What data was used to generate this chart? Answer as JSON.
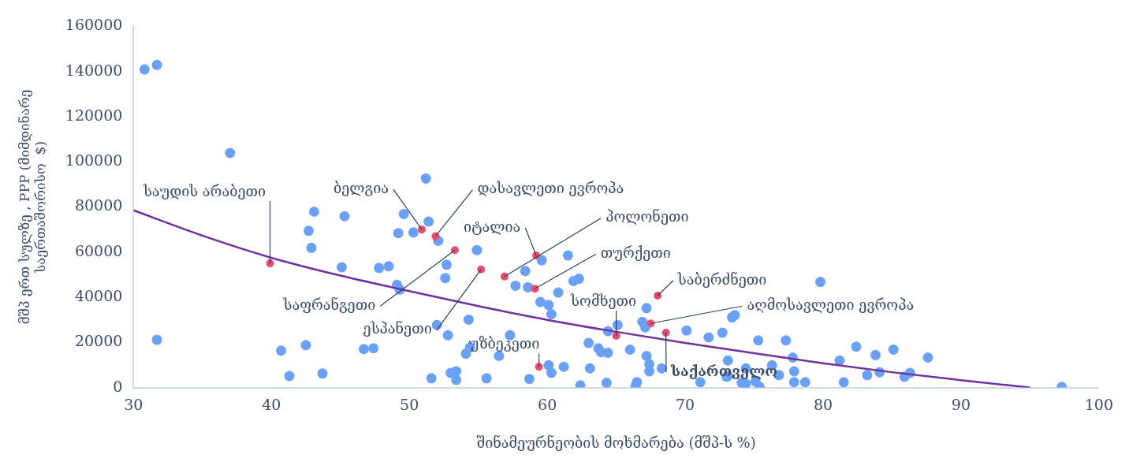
{
  "chart_data": {
    "type": "scatter",
    "xlabel": "შინამეურნეობის მოხმარება (მშპ-ს %)",
    "ylabel": "მშპ ერთ სულზე , PPP (მიმდინარე\nსაერთაშორისო  $)",
    "xlim": [
      30,
      100
    ],
    "xticks": [
      30,
      40,
      50,
      60,
      70,
      80,
      90,
      100
    ],
    "ylim": [
      0,
      160000
    ],
    "yticks": [
      0,
      20000,
      40000,
      60000,
      80000,
      100000,
      120000,
      140000,
      160000
    ],
    "grid": false,
    "legend": false,
    "marker": "circle",
    "series": [
      {
        "color": "#6aa1f6",
        "x": [
          30.8,
          31.7,
          37.0,
          31.7,
          42.7,
          43.1,
          42.9,
          45.3,
          45.1,
          40.7,
          41.3,
          42.5,
          43.7,
          46.7,
          47.4,
          47.8,
          48.5,
          49.1,
          49.3,
          49.2,
          49.6,
          50.3,
          51.2,
          51.4,
          52.1,
          52.7,
          52.6,
          51.6,
          52.0,
          52.8,
          54.3,
          54.9,
          54.1,
          54.4,
          53.0,
          53.4,
          53.4,
          55.6,
          56.5,
          57.3,
          58.4,
          57.7,
          58.6,
          59.6,
          59.5,
          60.1,
          60.3,
          60.8,
          61.5,
          61.9,
          62.3,
          60.1,
          60.3,
          61.2,
          63.0,
          63.1,
          63.7,
          63.9,
          64.4,
          64.4,
          65.1,
          66.0,
          67.2,
          66.9,
          67.1,
          67.2,
          67.4,
          67.4,
          68.3,
          70.1,
          71.7,
          72.7,
          73.4,
          73.6,
          73.0,
          71.1,
          66.5,
          66.4,
          64.3,
          62.4,
          58.7,
          79.8,
          75.3,
          77.3,
          77.8,
          73.1,
          76.3,
          74.4,
          77.9,
          76.8,
          73.1,
          74.1,
          74.4,
          75.1,
          75.4,
          77.9,
          78.7,
          81.2,
          81.5,
          82.4,
          83.8,
          85.1,
          83.2,
          84.1,
          85.9,
          86.3,
          87.6,
          97.3
        ],
        "values": [
          140900,
          142900,
          103900,
          21200,
          69400,
          77900,
          61900,
          75900,
          53300,
          16400,
          5100,
          18800,
          6200,
          17100,
          17400,
          53000,
          53700,
          45500,
          43400,
          68400,
          76900,
          68700,
          92600,
          73500,
          65000,
          54400,
          48500,
          4100,
          27700,
          23200,
          30100,
          60900,
          15000,
          17800,
          6500,
          7200,
          3400,
          4100,
          14000,
          23200,
          51600,
          45100,
          44400,
          56400,
          37900,
          36600,
          32500,
          42100,
          58500,
          47200,
          48200,
          9900,
          6500,
          9200,
          19800,
          8500,
          17400,
          15700,
          15400,
          25000,
          27700,
          16800,
          35200,
          29100,
          26700,
          14000,
          10300,
          7200,
          8500,
          25300,
          22200,
          24300,
          31100,
          32100,
          4800,
          2400,
          2400,
          800,
          2100,
          1000,
          3800,
          46800,
          20900,
          20900,
          13300,
          12000,
          9900,
          8500,
          7200,
          5500,
          5100,
          2100,
          1700,
          2700,
          300,
          2400,
          2400,
          12000,
          2400,
          18100,
          14400,
          16800,
          5500,
          6800,
          4800,
          6500,
          13300,
          300
        ]
      },
      {
        "color": "#e94d6b",
        "x": [
          39.9,
          50.9,
          51.9,
          53.3,
          55.2,
          56.9,
          59.2,
          59.1,
          68.0,
          65.0,
          67.5,
          68.6,
          59.4
        ],
        "values": [
          55000,
          70000,
          67000,
          60900,
          52300,
          49200,
          58500,
          43800,
          40700,
          22900,
          28400,
          24300,
          9200
        ]
      },
      {
        "type": "line",
        "marker": "none",
        "color": "#7030a0",
        "x": [
          30,
          35,
          40,
          45,
          50,
          55,
          60,
          65,
          70,
          75,
          80,
          85,
          90,
          95
        ],
        "values": [
          78500,
          67300,
          57500,
          49600,
          42700,
          36100,
          30000,
          24700,
          19800,
          15200,
          10800,
          6800,
          3300,
          0
        ]
      }
    ],
    "annotations": [
      {
        "text": "საუდის არაბეთი",
        "x": 39.9,
        "y": 55000
      },
      {
        "text": "ბელგია",
        "x": 50.9,
        "y": 70000
      },
      {
        "text": "დასავლეთი ევროპა",
        "x": 51.9,
        "y": 67000
      },
      {
        "text": "საფრანგეთი",
        "x": 53.3,
        "y": 60900
      },
      {
        "text": "ესპანეთი",
        "x": 55.2,
        "y": 52300
      },
      {
        "text": "პოლონეთი",
        "x": 56.9,
        "y": 49200
      },
      {
        "text": "იტალია",
        "x": 59.2,
        "y": 58500
      },
      {
        "text": "თურქეთი",
        "x": 59.1,
        "y": 43800
      },
      {
        "text": "საბერძნეთი",
        "x": 68.0,
        "y": 40700
      },
      {
        "text": "სომხეთი",
        "x": 65.0,
        "y": 22900
      },
      {
        "text": "აღმოსავლეთი ევროპა",
        "x": 67.5,
        "y": 28400
      },
      {
        "text": "საქართველო",
        "x": 68.6,
        "y": 24300
      },
      {
        "text": "უზბეკეთი",
        "x": 59.4,
        "y": 9200
      }
    ]
  }
}
